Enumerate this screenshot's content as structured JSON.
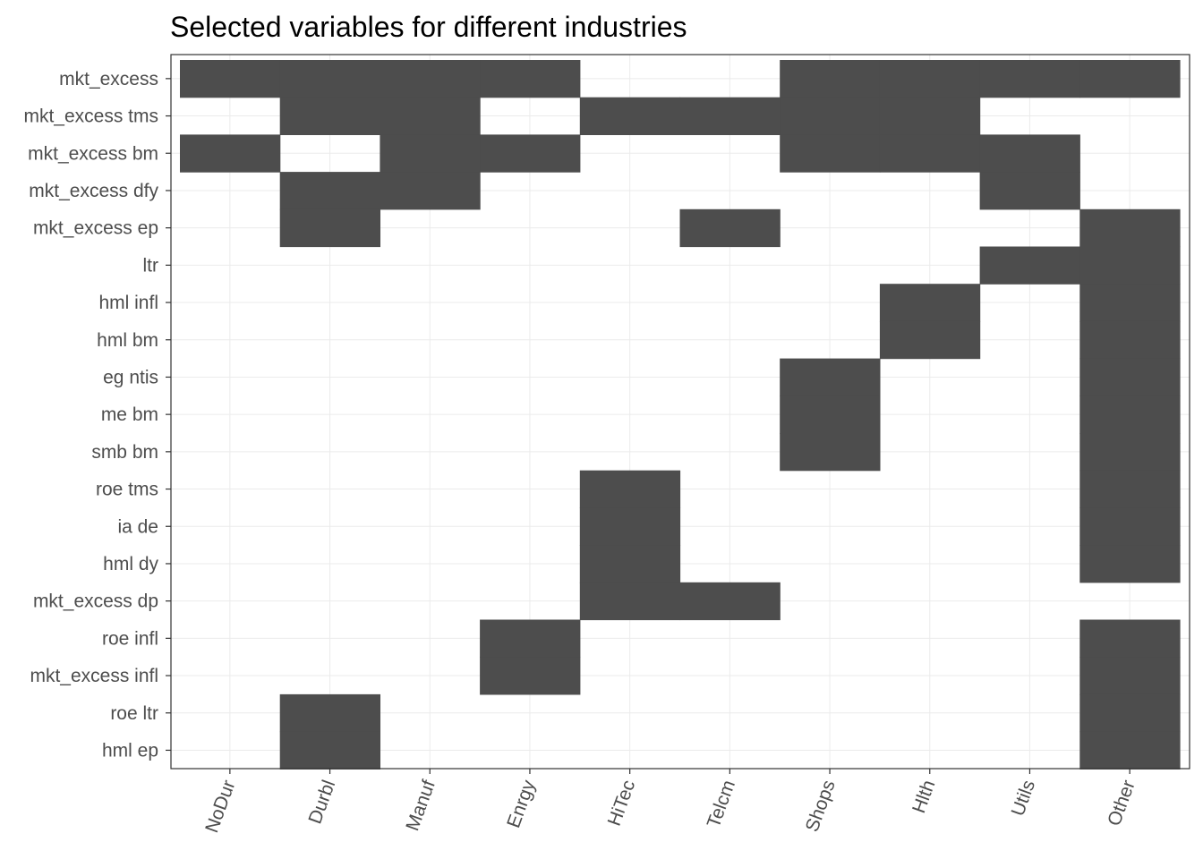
{
  "chart_data": {
    "type": "heatmap",
    "title": "Selected variables for different industries",
    "xlabel": "",
    "ylabel": "",
    "x": [
      "NoDur",
      "Durbl",
      "Manuf",
      "Enrgy",
      "HiTec",
      "Telcm",
      "Shops",
      "Hlth",
      "Utils",
      "Other"
    ],
    "y": [
      "mkt_excess",
      "mkt_excess tms",
      "mkt_excess bm",
      "mkt_excess dfy",
      "mkt_excess ep",
      "ltr",
      "hml infl",
      "hml bm",
      "eg ntis",
      "me bm",
      "smb bm",
      "roe tms",
      "ia de",
      "hml dy",
      "mkt_excess dp",
      "roe infl",
      "mkt_excess infl",
      "roe ltr",
      "hml ep"
    ],
    "values": [
      [
        1,
        1,
        1,
        1,
        0,
        0,
        1,
        1,
        1,
        1
      ],
      [
        0,
        1,
        1,
        0,
        1,
        1,
        1,
        1,
        0,
        0
      ],
      [
        1,
        0,
        1,
        1,
        0,
        0,
        1,
        1,
        1,
        0
      ],
      [
        0,
        1,
        1,
        0,
        0,
        0,
        0,
        0,
        1,
        0
      ],
      [
        0,
        1,
        0,
        0,
        0,
        1,
        0,
        0,
        0,
        1
      ],
      [
        0,
        0,
        0,
        0,
        0,
        0,
        0,
        0,
        1,
        1
      ],
      [
        0,
        0,
        0,
        0,
        0,
        0,
        0,
        1,
        0,
        1
      ],
      [
        0,
        0,
        0,
        0,
        0,
        0,
        0,
        1,
        0,
        1
      ],
      [
        0,
        0,
        0,
        0,
        0,
        0,
        1,
        0,
        0,
        1
      ],
      [
        0,
        0,
        0,
        0,
        0,
        0,
        1,
        0,
        0,
        1
      ],
      [
        0,
        0,
        0,
        0,
        0,
        0,
        1,
        0,
        0,
        1
      ],
      [
        0,
        0,
        0,
        0,
        1,
        0,
        0,
        0,
        0,
        1
      ],
      [
        0,
        0,
        0,
        0,
        1,
        0,
        0,
        0,
        0,
        1
      ],
      [
        0,
        0,
        0,
        0,
        1,
        0,
        0,
        0,
        0,
        1
      ],
      [
        0,
        0,
        0,
        0,
        1,
        1,
        0,
        0,
        0,
        0
      ],
      [
        0,
        0,
        0,
        1,
        0,
        0,
        0,
        0,
        0,
        1
      ],
      [
        0,
        0,
        0,
        1,
        0,
        0,
        0,
        0,
        0,
        1
      ],
      [
        0,
        1,
        0,
        0,
        0,
        0,
        0,
        0,
        0,
        1
      ],
      [
        0,
        1,
        0,
        0,
        0,
        0,
        0,
        0,
        0,
        1
      ]
    ],
    "colors": {
      "selected": "#4d4d4d",
      "unselected": "#ffffff",
      "grid": "#ebebeb",
      "border": "#333333"
    },
    "grid": true,
    "legend": "none"
  }
}
